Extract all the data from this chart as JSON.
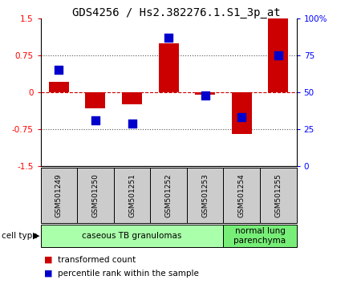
{
  "title": "GDS4256 / Hs2.382276.1.S1_3p_at",
  "samples": [
    "GSM501249",
    "GSM501250",
    "GSM501251",
    "GSM501252",
    "GSM501253",
    "GSM501254",
    "GSM501255"
  ],
  "transformed_counts": [
    0.22,
    -0.32,
    -0.25,
    1.0,
    -0.05,
    -0.85,
    1.5
  ],
  "percentile_ranks": [
    65,
    31,
    29,
    87,
    48,
    33,
    75
  ],
  "ylim": [
    -1.5,
    1.5
  ],
  "yticks_left": [
    -1.5,
    -0.75,
    0,
    0.75,
    1.5
  ],
  "yticks_right": [
    0,
    25,
    50,
    75,
    100
  ],
  "bar_color": "#cc0000",
  "dot_color": "#0000cc",
  "zero_line_color": "#cc0000",
  "dotted_line_color": "#555555",
  "groups": [
    {
      "label": "caseous TB granulomas",
      "samples": [
        0,
        1,
        2,
        3,
        4
      ],
      "color": "#aaffaa"
    },
    {
      "label": "normal lung\nparenchyma",
      "samples": [
        5,
        6
      ],
      "color": "#77ee77"
    }
  ],
  "cell_type_label": "cell type",
  "legend_items": [
    {
      "color": "#cc0000",
      "label": "transformed count"
    },
    {
      "color": "#0000cc",
      "label": "percentile rank within the sample"
    }
  ],
  "bar_width": 0.55,
  "dot_size": 55,
  "background_color": "#ffffff",
  "plot_bg_color": "#ffffff",
  "label_area_color": "#cccccc",
  "title_fontsize": 10,
  "tick_fontsize": 7.5,
  "sample_fontsize": 6.5,
  "group_fontsize": 7.5,
  "legend_fontsize": 7.5
}
